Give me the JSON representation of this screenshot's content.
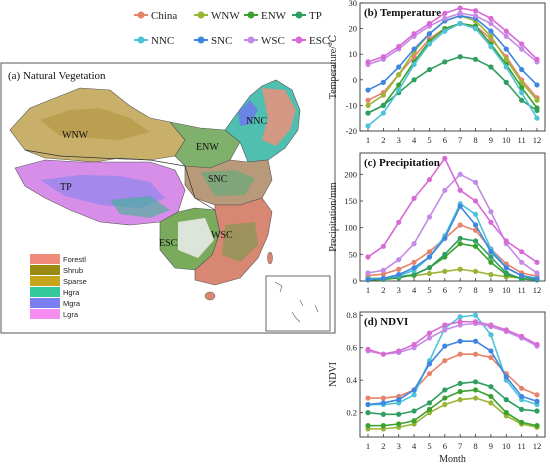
{
  "legend": {
    "items": [
      {
        "name": "China",
        "color": "#e8836b"
      },
      {
        "name": "WNW",
        "color": "#9ab536"
      },
      {
        "name": "ENW",
        "color": "#3aa02e"
      },
      {
        "name": "TP",
        "color": "#2f9e61"
      },
      {
        "name": "NNC",
        "color": "#4cc3d9"
      },
      {
        "name": "SNC",
        "color": "#3f86e0"
      },
      {
        "name": "WSC",
        "color": "#c48ae6"
      },
      {
        "name": "ESC",
        "color": "#d86ad6"
      }
    ]
  },
  "map": {
    "title": "(a) Natural Vegetation",
    "region_labels": [
      "WNW",
      "ENW",
      "NNC",
      "TP",
      "SNC",
      "ESC",
      "WSC"
    ],
    "veg_legend": [
      {
        "name": "Forestl",
        "color": "#f08a7a"
      },
      {
        "name": "Shrub",
        "color": "#9a8a14"
      },
      {
        "name": "Sparse",
        "color": "#c7a51a"
      },
      {
        "name": "Hgra",
        "color": "#33c99a"
      },
      {
        "name": "Mgra",
        "color": "#7a7ef0"
      },
      {
        "name": "Lgra",
        "color": "#f58ef0"
      }
    ]
  },
  "chart_data": [
    {
      "type": "line",
      "title": "(b) Temperature",
      "ylabel": "Temperature/℃",
      "xlabel": "",
      "x": [
        1,
        2,
        3,
        4,
        5,
        6,
        7,
        8,
        9,
        10,
        11,
        12
      ],
      "ylim": [
        -20,
        30
      ],
      "yticks": [
        -20,
        -10,
        0,
        10,
        20,
        30
      ],
      "series": [
        {
          "name": "China",
          "values": [
            -8,
            -5,
            2,
            9,
            16,
            20,
            22,
            21,
            16,
            9,
            0,
            -7
          ]
        },
        {
          "name": "WNW",
          "values": [
            -10,
            -6,
            2,
            11,
            18,
            23,
            25,
            23,
            17,
            8,
            -1,
            -8
          ]
        },
        {
          "name": "ENW",
          "values": [
            -13,
            -10,
            -2,
            7,
            15,
            20,
            22,
            21,
            14,
            6,
            -3,
            -11
          ]
        },
        {
          "name": "TP",
          "values": [
            -13,
            -10,
            -5,
            0,
            4,
            7,
            9,
            8,
            5,
            -1,
            -8,
            -12
          ]
        },
        {
          "name": "NNC",
          "values": [
            -18,
            -13,
            -4,
            6,
            14,
            19,
            22,
            20,
            13,
            5,
            -5,
            -15
          ]
        },
        {
          "name": "SNC",
          "values": [
            -4,
            -1,
            5,
            12,
            18,
            23,
            25,
            24,
            19,
            12,
            4,
            -2
          ]
        },
        {
          "name": "WSC",
          "values": [
            6,
            8,
            12,
            17,
            21,
            24,
            26,
            25,
            22,
            17,
            12,
            7
          ]
        },
        {
          "name": "ESC",
          "values": [
            7,
            9,
            13,
            18,
            22,
            26,
            28,
            27,
            24,
            19,
            14,
            8
          ]
        }
      ]
    },
    {
      "type": "line",
      "title": "(c) Precipitation",
      "ylabel": "Precipitation/mm",
      "xlabel": "",
      "x": [
        1,
        2,
        3,
        4,
        5,
        6,
        7,
        8,
        9,
        10,
        11,
        12
      ],
      "ylim": [
        0,
        240
      ],
      "yticks": [
        0,
        50,
        100,
        150,
        200
      ],
      "series": [
        {
          "name": "China",
          "values": [
            10,
            13,
            22,
            35,
            55,
            80,
            105,
            95,
            60,
            32,
            15,
            9
          ]
        },
        {
          "name": "WNW",
          "values": [
            5,
            5,
            8,
            10,
            14,
            18,
            22,
            18,
            12,
            8,
            6,
            5
          ]
        },
        {
          "name": "ENW",
          "values": [
            2,
            3,
            6,
            12,
            25,
            45,
            70,
            65,
            35,
            12,
            4,
            2
          ]
        },
        {
          "name": "TP",
          "values": [
            3,
            4,
            8,
            12,
            25,
            50,
            80,
            75,
            45,
            15,
            4,
            2
          ]
        },
        {
          "name": "NNC",
          "values": [
            4,
            5,
            10,
            20,
            45,
            85,
            145,
            125,
            60,
            25,
            10,
            5
          ]
        },
        {
          "name": "SNC",
          "values": [
            3,
            5,
            12,
            25,
            45,
            80,
            140,
            105,
            55,
            25,
            10,
            4
          ]
        },
        {
          "name": "WSC",
          "values": [
            15,
            20,
            40,
            70,
            120,
            170,
            200,
            185,
            130,
            70,
            35,
            15
          ]
        },
        {
          "name": "ESC",
          "values": [
            45,
            65,
            110,
            155,
            190,
            230,
            170,
            150,
            110,
            75,
            55,
            35
          ]
        }
      ]
    },
    {
      "type": "line",
      "title": "(d) NDVI",
      "ylabel": "NDVI",
      "xlabel": "Month",
      "x": [
        1,
        2,
        3,
        4,
        5,
        6,
        7,
        8,
        9,
        10,
        11,
        12
      ],
      "ylim": [
        0.05,
        0.82
      ],
      "yticks": [
        0.2,
        0.4,
        0.6,
        0.8
      ],
      "series": [
        {
          "name": "China",
          "values": [
            0.29,
            0.29,
            0.3,
            0.34,
            0.44,
            0.52,
            0.56,
            0.56,
            0.54,
            0.44,
            0.35,
            0.31
          ]
        },
        {
          "name": "WNW",
          "values": [
            0.1,
            0.1,
            0.11,
            0.13,
            0.2,
            0.25,
            0.28,
            0.29,
            0.26,
            0.18,
            0.13,
            0.11
          ]
        },
        {
          "name": "ENW",
          "values": [
            0.12,
            0.12,
            0.13,
            0.15,
            0.22,
            0.29,
            0.33,
            0.34,
            0.3,
            0.2,
            0.14,
            0.12
          ]
        },
        {
          "name": "TP",
          "values": [
            0.2,
            0.19,
            0.19,
            0.21,
            0.26,
            0.34,
            0.38,
            0.39,
            0.36,
            0.28,
            0.22,
            0.21
          ]
        },
        {
          "name": "NNC",
          "values": [
            0.25,
            0.25,
            0.26,
            0.31,
            0.52,
            0.72,
            0.79,
            0.8,
            0.68,
            0.4,
            0.28,
            0.25
          ]
        },
        {
          "name": "SNC",
          "values": [
            0.25,
            0.26,
            0.28,
            0.34,
            0.5,
            0.61,
            0.64,
            0.64,
            0.58,
            0.42,
            0.3,
            0.27
          ]
        },
        {
          "name": "WSC",
          "values": [
            0.58,
            0.56,
            0.57,
            0.6,
            0.66,
            0.71,
            0.74,
            0.75,
            0.73,
            0.7,
            0.66,
            0.61
          ]
        },
        {
          "name": "ESC",
          "values": [
            0.59,
            0.56,
            0.58,
            0.62,
            0.69,
            0.74,
            0.76,
            0.76,
            0.74,
            0.71,
            0.67,
            0.62
          ]
        }
      ]
    }
  ]
}
